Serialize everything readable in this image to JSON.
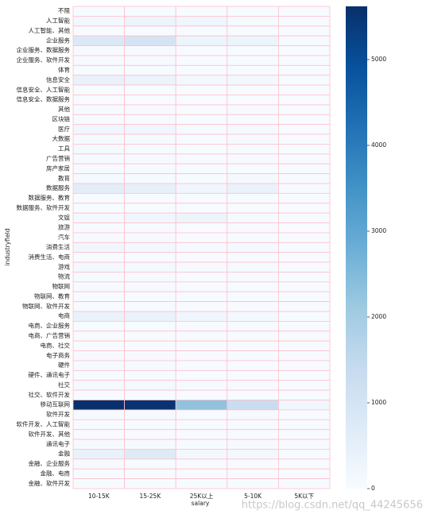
{
  "chart_data": {
    "type": "heatmap",
    "x_label": "salary",
    "y_label": "industryfield",
    "watermark": "https://blog.csdn.net/qq_44245656",
    "colormap": "Blues",
    "linecolor": "#ffc0cb",
    "clim": [
      0,
      5620
    ],
    "cticks": [
      0,
      1000,
      2000,
      3000,
      4000,
      5000
    ],
    "columns": [
      "10-15K",
      "15-25K",
      "25K以上",
      "5-10K",
      "5K以下"
    ],
    "rows": [
      "不限",
      "人工智能",
      "人工智能、其他",
      "企业服务",
      "企业服务、数据服务",
      "企业服务、软件开发",
      "体育",
      "信息安全",
      "信息安全、人工智能",
      "信息安全、数据服务",
      "其他",
      "区块链",
      "医疗",
      "大数据",
      "工具",
      "广告营销",
      "房产家居",
      "教育",
      "数据服务",
      "数据服务、教育",
      "数据服务、软件开发",
      "文娱",
      "旅游",
      "汽车",
      "消费生活",
      "消费生活、电商",
      "游戏",
      "物流",
      "物联网",
      "物联网、教育",
      "物联网、软件开发",
      "电商",
      "电商、企业服务",
      "电商、广告营销",
      "电商、社交",
      "电子商务",
      "硬件",
      "硬件、通讯电子",
      "社交",
      "社交、软件开发",
      "移动互联网",
      "软件开发",
      "软件开发、人工智能",
      "软件开发、其他",
      "通讯电子",
      "金融",
      "金融、企业服务",
      "金融、电商",
      "金融、软件开发"
    ],
    "values": [
      [
        20,
        15,
        5,
        15,
        5
      ],
      [
        150,
        300,
        200,
        60,
        5
      ],
      [
        5,
        5,
        2,
        2,
        0
      ],
      [
        800,
        1000,
        300,
        300,
        40
      ],
      [
        40,
        30,
        10,
        20,
        3
      ],
      [
        30,
        25,
        8,
        15,
        3
      ],
      [
        20,
        15,
        5,
        10,
        2
      ],
      [
        400,
        350,
        120,
        150,
        20
      ],
      [
        10,
        10,
        5,
        5,
        0
      ],
      [
        10,
        10,
        3,
        5,
        0
      ],
      [
        50,
        40,
        10,
        30,
        5
      ],
      [
        30,
        40,
        20,
        10,
        1
      ],
      [
        200,
        200,
        60,
        80,
        10
      ],
      [
        60,
        60,
        20,
        30,
        5
      ],
      [
        80,
        60,
        20,
        40,
        5
      ],
      [
        60,
        40,
        10,
        40,
        5
      ],
      [
        40,
        30,
        10,
        20,
        3
      ],
      [
        100,
        60,
        15,
        80,
        10
      ],
      [
        600,
        500,
        200,
        400,
        40
      ],
      [
        20,
        10,
        3,
        15,
        2
      ],
      [
        20,
        15,
        5,
        10,
        2
      ],
      [
        100,
        200,
        300,
        60,
        10
      ],
      [
        40,
        30,
        10,
        30,
        5
      ],
      [
        40,
        30,
        10,
        20,
        3
      ],
      [
        200,
        150,
        50,
        100,
        20
      ],
      [
        20,
        15,
        5,
        10,
        2
      ],
      [
        150,
        100,
        40,
        60,
        10
      ],
      [
        50,
        40,
        10,
        30,
        5
      ],
      [
        40,
        30,
        10,
        20,
        3
      ],
      [
        5,
        3,
        1,
        3,
        0
      ],
      [
        5,
        5,
        1,
        3,
        0
      ],
      [
        400,
        400,
        200,
        150,
        20
      ],
      [
        20,
        15,
        5,
        10,
        2
      ],
      [
        10,
        10,
        3,
        5,
        1
      ],
      [
        10,
        10,
        3,
        5,
        1
      ],
      [
        30,
        30,
        10,
        15,
        2
      ],
      [
        60,
        50,
        20,
        20,
        3
      ],
      [
        20,
        15,
        5,
        10,
        1
      ],
      [
        100,
        100,
        60,
        30,
        5
      ],
      [
        10,
        10,
        3,
        5,
        1
      ],
      [
        5600,
        5550,
        2300,
        1300,
        200
      ],
      [
        60,
        60,
        20,
        30,
        5
      ],
      [
        5,
        5,
        2,
        3,
        0
      ],
      [
        5,
        5,
        2,
        3,
        0
      ],
      [
        60,
        50,
        20,
        30,
        5
      ],
      [
        400,
        700,
        150,
        150,
        20
      ],
      [
        30,
        20,
        5,
        10,
        2
      ],
      [
        20,
        15,
        5,
        10,
        1
      ],
      [
        10,
        10,
        3,
        5,
        1
      ]
    ]
  }
}
